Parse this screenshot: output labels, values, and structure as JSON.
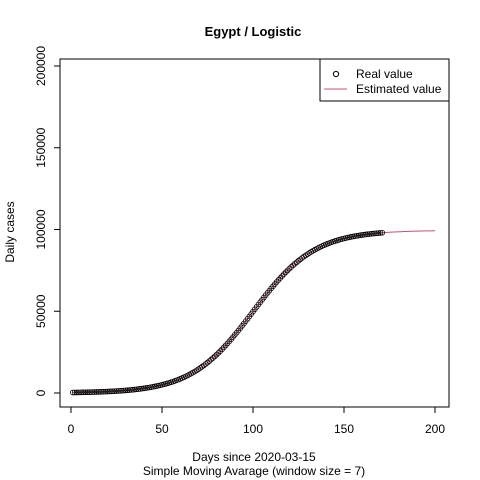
{
  "chart_data": {
    "type": "scatter",
    "title": "Egypt / Logistic",
    "xlabel": "Days since 2020-03-15",
    "xlabel2": "Simple Moving Avarage (window size = 7)",
    "ylabel": "Daily cases",
    "xlim": [
      0,
      200
    ],
    "ylim": [
      0,
      200000
    ],
    "xticks": [
      0,
      50,
      100,
      150,
      200
    ],
    "yticks": [
      0,
      50000,
      100000,
      150000,
      200000
    ],
    "grid": false,
    "legend_position": "top-right",
    "series": [
      {
        "name": "Real value",
        "style": "points",
        "color": "#000000",
        "x_range": [
          1,
          171
        ],
        "model": {
          "type": "logistic",
          "K": 99500,
          "r": 0.0588,
          "t0": 100,
          "base": 0
        }
      },
      {
        "name": "Estimated value",
        "style": "line",
        "color": "#c8507a",
        "x_range": [
          1,
          200
        ],
        "model": {
          "type": "logistic",
          "K": 99500,
          "r": 0.0588,
          "t0": 100,
          "base": 0
        }
      }
    ]
  }
}
